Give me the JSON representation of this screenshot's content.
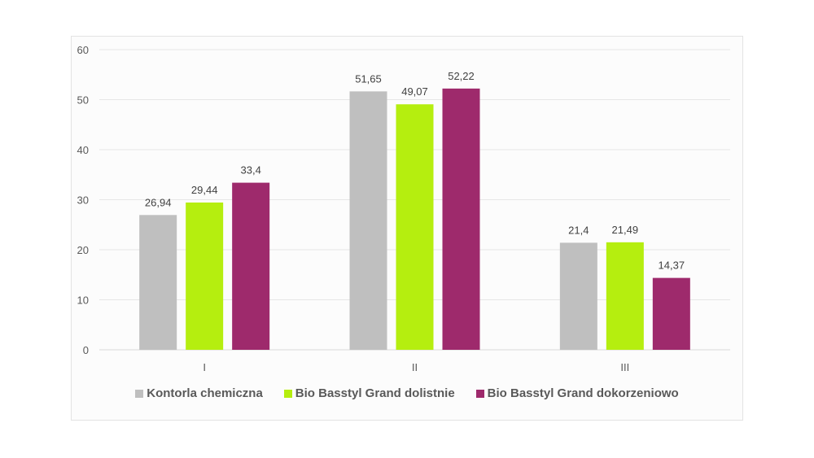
{
  "chart_data": {
    "type": "bar",
    "title": "",
    "xlabel": "",
    "ylabel": "",
    "categories": [
      "I",
      "II",
      "III"
    ],
    "series": [
      {
        "name": "Kontorla chemiczna",
        "color": "#bfbfbf",
        "values": [
          26.94,
          51.65,
          21.4
        ],
        "labels": [
          "26,94",
          "51,65",
          "21,4"
        ]
      },
      {
        "name": "Bio Basstyl Grand dolistnie",
        "color": "#b5ee0f",
        "values": [
          29.44,
          49.07,
          21.49
        ],
        "labels": [
          "29,44",
          "49,07",
          "21,49"
        ]
      },
      {
        "name": "Bio Basstyl Grand dokorzeniowo",
        "color": "#9e2a6c",
        "values": [
          33.4,
          52.22,
          14.37
        ],
        "labels": [
          "33,4",
          "52,22",
          "14,37"
        ]
      }
    ],
    "ylim": [
      0,
      60
    ],
    "yticks": [
      "0",
      "10",
      "20",
      "30",
      "40",
      "50",
      "60"
    ],
    "grid": true,
    "legend_position": "bottom"
  }
}
